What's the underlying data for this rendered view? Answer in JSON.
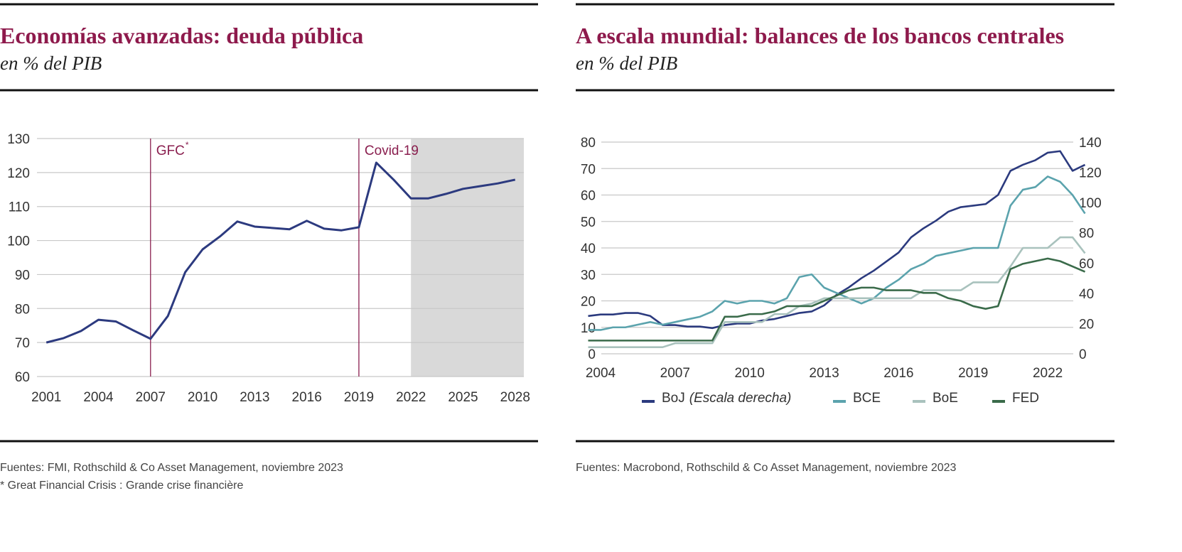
{
  "chart_data": [
    {
      "type": "line",
      "title": "Economías avanzadas: deuda pública",
      "subtitle": "en % del PIB",
      "x": [
        2001,
        2002,
        2003,
        2004,
        2005,
        2006,
        2007,
        2008,
        2009,
        2010,
        2011,
        2012,
        2013,
        2014,
        2015,
        2016,
        2017,
        2018,
        2019,
        2020,
        2021,
        2022,
        2023,
        2024,
        2025,
        2026,
        2027,
        2028
      ],
      "values": [
        70.0,
        71.3,
        73.4,
        76.7,
        76.2,
        73.6,
        71.1,
        77.8,
        90.7,
        97.4,
        101.2,
        105.6,
        104.1,
        103.7,
        103.3,
        105.8,
        103.5,
        103.0,
        103.9,
        122.9,
        117.9,
        112.4,
        112.4,
        113.7,
        115.2,
        116.0,
        116.8,
        117.9
      ],
      "color": "#2c3a7f",
      "xlim": [
        2000.5,
        2028.5
      ],
      "xticks": [
        2001,
        2004,
        2007,
        2010,
        2013,
        2016,
        2019,
        2022,
        2025,
        2028
      ],
      "ylim": [
        60,
        130
      ],
      "yticks": [
        60,
        70,
        80,
        90,
        100,
        110,
        120,
        130
      ],
      "grid": true,
      "annotations": [
        {
          "x": 2007,
          "label": "GFC",
          "superscript": "*"
        },
        {
          "x": 2019,
          "label": "Covid-19"
        }
      ],
      "shaded_from": 2022,
      "source": "Fuentes: FMI, Rothschild & Co Asset Management, noviembre 2023",
      "footnote": "* Great Financial Crisis : Grande crise financière"
    },
    {
      "type": "line",
      "title": "A escala mundial: balances de los bancos centrales",
      "subtitle": "en % del PIB",
      "x": [
        2003.5,
        2004,
        2004.5,
        2005,
        2005.5,
        2006,
        2006.5,
        2007,
        2007.5,
        2008,
        2008.5,
        2009,
        2009.5,
        2010,
        2010.5,
        2011,
        2011.5,
        2012,
        2012.5,
        2013,
        2013.5,
        2014,
        2014.5,
        2015,
        2015.5,
        2016,
        2016.5,
        2017,
        2017.5,
        2018,
        2018.5,
        2019,
        2019.5,
        2020,
        2020.5,
        2021,
        2021.5,
        2022,
        2022.5,
        2023,
        2023.5
      ],
      "series": [
        {
          "name": "BoJ",
          "name_note": "(Escala derecha)",
          "color": "#2b3a7e",
          "axis": "y2",
          "values": [
            25,
            26,
            26,
            27,
            27,
            25,
            19,
            19,
            18,
            18,
            17,
            19,
            20,
            20,
            22,
            23,
            25,
            27,
            28,
            32,
            39,
            44,
            50,
            55,
            61,
            67,
            77,
            83,
            88,
            94,
            97,
            98,
            99,
            105,
            121,
            125,
            128,
            133,
            134,
            121,
            125
          ]
        },
        {
          "name": "BCE",
          "color": "#5ba3ad",
          "values": [
            9,
            9,
            10,
            10,
            11,
            12,
            11,
            12,
            13,
            14,
            16,
            20,
            19,
            20,
            20,
            19,
            21,
            29,
            30,
            25,
            23,
            21,
            19,
            21,
            25,
            28,
            32,
            34,
            37,
            38,
            39,
            40,
            40,
            40,
            56,
            62,
            63,
            67,
            65,
            60,
            53
          ]
        },
        {
          "name": "BoE",
          "color": "#a9c2bd",
          "values": [
            2.5,
            2.5,
            2.5,
            2.5,
            2.5,
            2.5,
            2.5,
            4,
            4,
            4,
            4,
            12,
            12,
            12,
            12,
            15,
            15,
            18,
            19,
            21,
            21,
            21,
            21,
            21,
            21,
            21,
            21,
            24,
            24,
            24,
            24,
            27,
            27,
            27,
            33,
            40,
            40,
            40,
            44,
            44,
            38
          ]
        },
        {
          "name": "FED",
          "color": "#3a6b4a",
          "values": [
            5,
            5,
            5,
            5,
            5,
            5,
            5,
            5,
            5,
            5,
            5,
            14,
            14,
            15,
            15,
            16,
            18,
            18,
            18,
            20,
            22,
            24,
            25,
            25,
            24,
            24,
            24,
            23,
            23,
            21,
            20,
            18,
            17,
            18,
            32,
            34,
            35,
            36,
            35,
            33,
            31
          ]
        }
      ],
      "xlim": [
        2003.2,
        2023.8
      ],
      "xticks": [
        2004,
        2007,
        2010,
        2013,
        2016,
        2019,
        2022
      ],
      "ylim": [
        0,
        80
      ],
      "yticks": [
        0,
        10,
        20,
        30,
        40,
        50,
        60,
        70,
        80
      ],
      "y2lim": [
        0,
        140
      ],
      "y2ticks": [
        0,
        20,
        40,
        60,
        80,
        100,
        120,
        140
      ],
      "grid": true,
      "source": "Fuentes: Macrobond, Rothschild & Co Asset Management, noviembre 2023"
    }
  ]
}
